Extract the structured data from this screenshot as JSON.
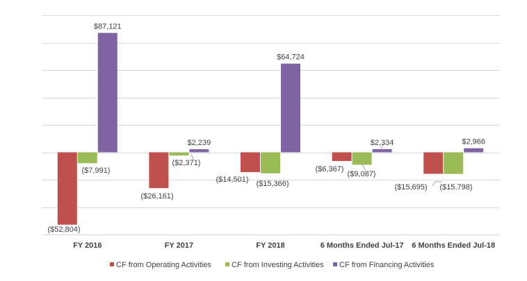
{
  "chart_data": {
    "type": "bar",
    "categories": [
      "FY 2016",
      "FY 2017",
      "FY 2018",
      "6 Months Ended Jul-17",
      "6 Months Ended Jul-18"
    ],
    "series": [
      {
        "name": "CF from Operating Activities",
        "color": "#c0504d",
        "values": [
          -52804,
          -26161,
          -14501,
          -6367,
          -15695
        ],
        "labels": [
          "($52,804)",
          "($26,161)",
          "($14,501)",
          "($6,367)",
          "($15,695)"
        ]
      },
      {
        "name": "CF from Investing Activities",
        "color": "#9bbb59",
        "values": [
          -7991,
          -2371,
          -15366,
          -9087,
          -15798
        ],
        "labels": [
          "($7,991)",
          "($2,371)",
          "($15,366)",
          "($9,087)",
          "($15,798)"
        ]
      },
      {
        "name": "CF from Financing Activities",
        "color": "#8064a2",
        "values": [
          87121,
          2239,
          64724,
          2334,
          2966
        ],
        "labels": [
          "$87,121",
          "$2,239",
          "$64,724",
          "$2,334",
          "$2,966"
        ]
      }
    ],
    "title": "",
    "xlabel": "",
    "ylabel": "",
    "ylim": [
      -60000,
      100000
    ],
    "grid": true,
    "legend": "bottom"
  }
}
